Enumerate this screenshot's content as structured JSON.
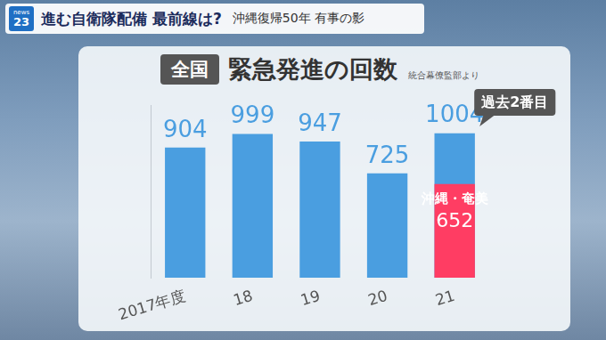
{
  "header": {
    "logo": [
      "news",
      "23"
    ],
    "headline": "進む自衛隊配備 最前線は?",
    "subhead": "沖縄復帰50年 有事の影"
  },
  "chart_data": {
    "type": "bar",
    "title": "緊急発進の回数",
    "scope_label": "全国",
    "source": "統合幕僚監部より",
    "annotation": "過去2番目",
    "categories": [
      "2017年度",
      "18",
      "19",
      "20",
      "21"
    ],
    "series": [
      {
        "name": "沖縄・奄美",
        "color": "#ff3d63",
        "values": [
          null,
          null,
          null,
          null,
          652
        ]
      },
      {
        "name": "全国",
        "color": "#4a9ee0",
        "values": [
          904,
          999,
          947,
          725,
          1004
        ]
      }
    ],
    "ylim": [
      0,
      1200
    ],
    "grid": false,
    "data_labels": true,
    "tick_labels": "x"
  }
}
